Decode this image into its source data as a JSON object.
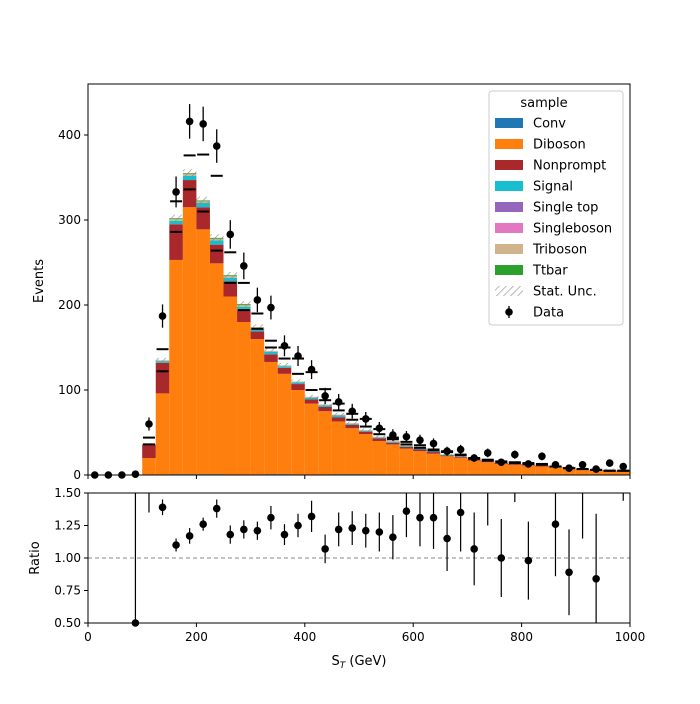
{
  "chart_data": {
    "type": "bar",
    "stacked": true,
    "xlabel": "S_T (GeV)",
    "xlim": [
      0,
      1000
    ],
    "bin_width": 25,
    "x_bin_edges_start": [
      0,
      25,
      50,
      75,
      100,
      125,
      150,
      175,
      200,
      225,
      250,
      275,
      300,
      325,
      350,
      375,
      400,
      425,
      450,
      475,
      500,
      525,
      550,
      575,
      600,
      625,
      650,
      675,
      700,
      725,
      750,
      775,
      800,
      825,
      850,
      875,
      900,
      925,
      950,
      975
    ],
    "x_ticks": [
      0,
      200,
      400,
      600,
      800,
      1000
    ],
    "legend": {
      "title": "sample",
      "placement": "top-right",
      "stat_unc_label": "Stat. Unc.",
      "data_label": "Data"
    },
    "colors": {
      "Conv": "#1f77b4",
      "Diboson": "#ff7f0e",
      "Nonprompt": "#a9282b",
      "Signal": "#17becf",
      "Single top": "#9467bd",
      "Singleboson": "#e377c2",
      "Triboson": "#d2b48c",
      "Ttbar": "#2ca02c"
    },
    "top_panel": {
      "ylabel": "Events",
      "ylim": [
        0,
        460
      ],
      "y_ticks": [
        0,
        100,
        200,
        300,
        400
      ],
      "series": [
        {
          "name": "Conv",
          "values": [
            0,
            0,
            0,
            0,
            0,
            0,
            1,
            1,
            1,
            1,
            0,
            0,
            0,
            1,
            1,
            0,
            0,
            0,
            1,
            1,
            1,
            0,
            0,
            0,
            0,
            0,
            0,
            0,
            0,
            0,
            0,
            0,
            0,
            0,
            0,
            0,
            0,
            0,
            0,
            0
          ]
        },
        {
          "name": "Diboson",
          "values": [
            0,
            0,
            0,
            0,
            20,
            96,
            252,
            314,
            288,
            248,
            210,
            180,
            160,
            132,
            118,
            100,
            84,
            75,
            62,
            54,
            47,
            40,
            36,
            31,
            28,
            25,
            22,
            20,
            17,
            15,
            13,
            12,
            11,
            10,
            9,
            8,
            7,
            6,
            6,
            5
          ]
        },
        {
          "name": "Nonprompt",
          "values": [
            0,
            0,
            0,
            0,
            16,
            36,
            42,
            32,
            26,
            22,
            18,
            14,
            9,
            9,
            7,
            7,
            5,
            5,
            5,
            4,
            3,
            3,
            2,
            2,
            2,
            2,
            1,
            1,
            1,
            1,
            1,
            1,
            1,
            1,
            1,
            1,
            0,
            0,
            0,
            0
          ]
        },
        {
          "name": "Signal",
          "values": [
            0,
            0,
            0,
            0,
            0,
            2,
            4,
            5,
            5,
            5,
            4,
            4,
            3,
            3,
            2,
            2,
            2,
            2,
            2,
            1,
            1,
            1,
            1,
            1,
            1,
            1,
            1,
            0,
            0,
            0,
            0,
            0,
            0,
            0,
            0,
            0,
            0,
            0,
            0,
            0
          ]
        },
        {
          "name": "Single top",
          "values": [
            0,
            0,
            0,
            0,
            0,
            0,
            0,
            0,
            0,
            0,
            0,
            0,
            0,
            0,
            0,
            0,
            0,
            0,
            0,
            0,
            0,
            0,
            0,
            0,
            0,
            0,
            0,
            0,
            0,
            0,
            0,
            0,
            0,
            0,
            0,
            0,
            0,
            0,
            0,
            0
          ]
        },
        {
          "name": "Singleboson",
          "values": [
            0,
            0,
            0,
            0,
            0,
            0,
            0,
            0,
            0,
            0,
            0,
            0,
            0,
            0,
            0,
            0,
            0,
            0,
            0,
            0,
            0,
            0,
            0,
            0,
            0,
            0,
            0,
            0,
            0,
            0,
            0,
            0,
            0,
            0,
            0,
            0,
            0,
            0,
            0,
            0
          ]
        },
        {
          "name": "Triboson",
          "values": [
            0,
            0,
            0,
            0,
            0,
            1,
            2,
            2,
            2,
            2,
            2,
            2,
            2,
            1,
            1,
            1,
            1,
            1,
            1,
            1,
            1,
            1,
            1,
            1,
            1,
            0,
            0,
            0,
            0,
            0,
            0,
            0,
            0,
            0,
            0,
            0,
            0,
            0,
            0,
            0
          ]
        },
        {
          "name": "Ttbar",
          "values": [
            0,
            0,
            0,
            0,
            0,
            0,
            1,
            1,
            1,
            1,
            1,
            1,
            0,
            0,
            0,
            0,
            0,
            0,
            0,
            0,
            0,
            0,
            0,
            0,
            0,
            0,
            0,
            0,
            0,
            0,
            0,
            0,
            0,
            0,
            0,
            0,
            0,
            0,
            0,
            0
          ]
        }
      ],
      "data": {
        "name": "Data",
        "x": [
          12.5,
          37.5,
          62.5,
          87.5,
          112.5,
          137.5,
          162.5,
          187.5,
          212.5,
          237.5,
          262.5,
          287.5,
          312.5,
          337.5,
          362.5,
          387.5,
          412.5,
          437.5,
          462.5,
          487.5,
          512.5,
          537.5,
          562.5,
          587.5,
          612.5,
          637.5,
          662.5,
          687.5,
          712.5,
          737.5,
          762.5,
          787.5,
          812.5,
          837.5,
          862.5,
          887.5,
          912.5,
          937.5,
          962.5,
          987.5
        ],
        "values": [
          0,
          0,
          0,
          1,
          60,
          187,
          333,
          416,
          413,
          387,
          283,
          246,
          206,
          197,
          152,
          140,
          124,
          93,
          86,
          75,
          66,
          55,
          47,
          45,
          41,
          37,
          28,
          30,
          20,
          26,
          15,
          24,
          13,
          22,
          12,
          8,
          12,
          7,
          14,
          10
        ],
        "errors": [
          1.1,
          1.1,
          1.1,
          1.8,
          7.7,
          13.7,
          18.2,
          20.4,
          20.3,
          19.7,
          16.8,
          15.7,
          14.4,
          14.0,
          12.3,
          11.8,
          11.1,
          9.6,
          9.3,
          8.7,
          8.1,
          7.4,
          6.9,
          6.7,
          6.4,
          6.1,
          5.3,
          5.5,
          4.5,
          5.1,
          3.9,
          4.9,
          3.6,
          4.7,
          3.5,
          2.8,
          3.5,
          2.6,
          3.7,
          3.2
        ]
      },
      "black_markers": {
        "values": [
          0,
          0,
          0,
          0,
          44,
          148,
          322,
          376,
          377,
          352,
          262,
          226,
          190,
          158,
          150,
          137,
          121,
          101,
          84,
          72,
          66,
          54,
          44,
          39,
          35,
          30,
          28,
          24,
          20,
          18,
          16,
          15,
          14,
          13,
          10,
          8,
          7,
          6,
          5,
          5
        ],
        "lower_values": [
          0,
          0,
          0,
          0,
          36,
          122,
          286,
          336,
          310,
          264,
          226,
          194,
          172,
          150,
          137,
          119,
          100,
          88,
          76,
          65,
          57,
          48,
          42,
          36,
          32,
          29,
          27,
          23,
          19,
          17,
          15,
          14,
          13,
          12,
          10,
          8,
          7,
          6,
          5,
          5
        ]
      }
    },
    "ratio_panel": {
      "ylabel": "Ratio",
      "ylim": [
        0.5,
        1.5
      ],
      "y_ticks": [
        "0.50",
        "0.75",
        "1.00",
        "1.25",
        "1.50"
      ],
      "reference_line": 1.0,
      "x": [
        87.5,
        137.5,
        162.5,
        187.5,
        212.5,
        237.5,
        262.5,
        287.5,
        312.5,
        337.5,
        362.5,
        387.5,
        412.5,
        437.5,
        462.5,
        487.5,
        512.5,
        537.5,
        562.5,
        587.5,
        612.5,
        637.5,
        662.5,
        687.5,
        712.5,
        762.5,
        812.5,
        862.5,
        887.5,
        937.5
      ],
      "values": [
        0.5,
        1.39,
        1.1,
        1.17,
        1.26,
        1.38,
        1.18,
        1.22,
        1.21,
        1.31,
        1.18,
        1.25,
        1.32,
        1.07,
        1.22,
        1.23,
        1.21,
        1.2,
        1.16,
        1.36,
        1.31,
        1.31,
        1.15,
        1.35,
        1.07,
        1.0,
        0.98,
        1.26,
        0.89,
        0.84
      ],
      "err_low": [
        1.0,
        0.06,
        0.05,
        0.06,
        0.05,
        0.07,
        0.07,
        0.07,
        0.07,
        0.09,
        0.08,
        0.09,
        0.12,
        0.11,
        0.13,
        0.13,
        0.13,
        0.15,
        0.17,
        0.2,
        0.22,
        0.24,
        0.25,
        0.3,
        0.28,
        0.3,
        0.3,
        0.4,
        0.33,
        0.5
      ],
      "err_high": [
        1.0,
        0.06,
        0.05,
        0.06,
        0.05,
        0.07,
        0.07,
        0.07,
        0.07,
        0.09,
        0.08,
        0.09,
        0.12,
        0.11,
        0.13,
        0.13,
        0.13,
        0.15,
        0.17,
        0.2,
        0.22,
        0.24,
        0.25,
        0.3,
        0.28,
        0.3,
        0.3,
        0.4,
        0.33,
        0.5
      ],
      "offscale_bars": [
        {
          "x": 112.5,
          "low": 1.35
        },
        {
          "x": 137.5,
          "low": 1.5
        },
        {
          "x": 612.5,
          "low": 1.5
        },
        {
          "x": 637.5,
          "low": 1.5
        },
        {
          "x": 737.5,
          "low": 1.25
        },
        {
          "x": 787.5,
          "low": 1.43
        },
        {
          "x": 912.5,
          "low": 1.15
        },
        {
          "x": 987.5,
          "low": 1.44
        }
      ]
    }
  }
}
